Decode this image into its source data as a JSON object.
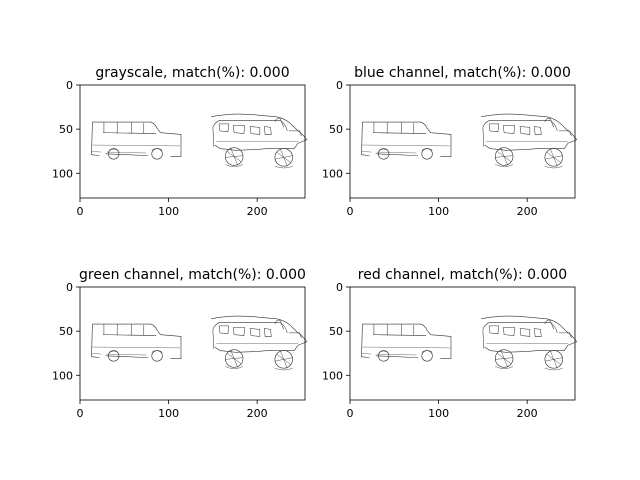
{
  "chart_data": [
    {
      "type": "image",
      "title": "grayscale, match(%): 0.000",
      "x_ticks": [
        0,
        100,
        200
      ],
      "y_ticks": [
        0,
        50,
        100
      ],
      "xlim": [
        0,
        254
      ],
      "ylim": [
        128,
        0
      ]
    },
    {
      "type": "image",
      "title": "blue channel, match(%): 0.000",
      "x_ticks": [
        0,
        100,
        200
      ],
      "y_ticks": [
        0,
        50,
        100
      ],
      "xlim": [
        0,
        254
      ],
      "ylim": [
        128,
        0
      ]
    },
    {
      "type": "image",
      "title": "green channel, match(%): 0.000",
      "x_ticks": [
        0,
        100,
        200
      ],
      "y_ticks": [
        0,
        50,
        100
      ],
      "xlim": [
        0,
        254
      ],
      "ylim": [
        128,
        0
      ]
    },
    {
      "type": "image",
      "title": "red channel, match(%): 0.000",
      "x_ticks": [
        0,
        100,
        200
      ],
      "y_ticks": [
        0,
        50,
        100
      ],
      "xlim": [
        0,
        254
      ],
      "ylim": [
        128,
        0
      ]
    }
  ]
}
